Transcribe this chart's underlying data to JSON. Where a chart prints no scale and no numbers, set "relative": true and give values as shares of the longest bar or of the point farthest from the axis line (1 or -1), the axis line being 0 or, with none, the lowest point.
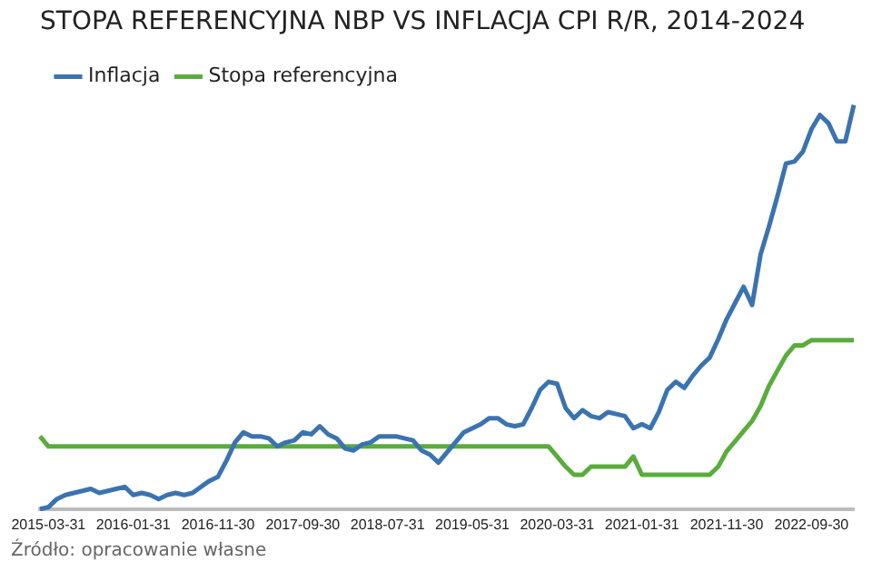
{
  "chart_data": {
    "type": "line",
    "title": "STOPA REFERENCYJNA NBP VS INFLACJA CPI R/R, 2014-2024",
    "categories": [
      null,
      "2015-03-31",
      null,
      null,
      null,
      null,
      null,
      null,
      null,
      null,
      null,
      "2016-01-31",
      null,
      null,
      null,
      null,
      null,
      null,
      null,
      null,
      null,
      "2016-11-30",
      null,
      null,
      null,
      null,
      null,
      null,
      null,
      null,
      null,
      "2017-09-30",
      null,
      null,
      null,
      null,
      null,
      null,
      null,
      null,
      null,
      "2018-07-31",
      null,
      null,
      null,
      null,
      null,
      null,
      null,
      null,
      null,
      "2019-05-31",
      null,
      null,
      null,
      null,
      null,
      null,
      null,
      null,
      null,
      "2020-03-31",
      null,
      null,
      null,
      null,
      null,
      null,
      null,
      null,
      null,
      "2021-01-31",
      null,
      null,
      null,
      null,
      null,
      null,
      null,
      null,
      null,
      "2021-11-30",
      null,
      null,
      null,
      null,
      null,
      null,
      null,
      null,
      null,
      "2022-09-30",
      null,
      null,
      null,
      null,
      null
    ],
    "relative": true,
    "series": [
      {
        "name": "Inflacja",
        "color": "#3b73b0",
        "values": [
          0,
          0.005,
          0.025,
          0.035,
          0.04,
          0.045,
          0.05,
          0.04,
          0.045,
          0.05,
          0.055,
          0.035,
          0.04,
          0.035,
          0.025,
          0.035,
          0.04,
          0.035,
          0.04,
          0.055,
          0.07,
          0.08,
          0.12,
          0.165,
          0.19,
          0.18,
          0.18,
          0.175,
          0.155,
          0.165,
          0.17,
          0.19,
          0.185,
          0.205,
          0.185,
          0.175,
          0.15,
          0.145,
          0.16,
          0.165,
          0.18,
          0.18,
          0.18,
          0.175,
          0.17,
          0.145,
          0.135,
          0.115,
          0.14,
          0.165,
          0.19,
          0.2,
          0.21,
          0.225,
          0.225,
          0.21,
          0.205,
          0.21,
          0.25,
          0.295,
          0.315,
          0.31,
          0.25,
          0.225,
          0.245,
          0.23,
          0.225,
          0.24,
          0.235,
          0.23,
          0.2,
          0.21,
          0.2,
          0.24,
          0.295,
          0.315,
          0.3,
          0.33,
          0.355,
          0.375,
          0.42,
          0.47,
          0.51,
          0.55,
          0.505,
          0.63,
          0.7,
          0.775,
          0.855,
          0.86,
          0.885,
          0.94,
          0.975,
          0.955,
          0.91,
          0.91,
          1
        ]
      },
      {
        "name": "Stopa referencyjna",
        "color": "#5aac3c",
        "values": [
          0.18,
          0.155,
          0.155,
          0.155,
          0.155,
          0.155,
          0.155,
          0.155,
          0.155,
          0.155,
          0.155,
          0.155,
          0.155,
          0.155,
          0.155,
          0.155,
          0.155,
          0.155,
          0.155,
          0.155,
          0.155,
          0.155,
          0.155,
          0.155,
          0.155,
          0.155,
          0.155,
          0.155,
          0.155,
          0.155,
          0.155,
          0.155,
          0.155,
          0.155,
          0.155,
          0.155,
          0.155,
          0.155,
          0.155,
          0.155,
          0.155,
          0.155,
          0.155,
          0.155,
          0.155,
          0.155,
          0.155,
          0.155,
          0.155,
          0.155,
          0.155,
          0.155,
          0.155,
          0.155,
          0.155,
          0.155,
          0.155,
          0.155,
          0.155,
          0.155,
          0.155,
          0.13,
          0.105,
          0.085,
          0.085,
          0.105,
          0.105,
          0.105,
          0.105,
          0.105,
          0.13,
          0.085,
          0.085,
          0.085,
          0.085,
          0.085,
          0.085,
          0.085,
          0.085,
          0.085,
          0.105,
          0.143,
          0.168,
          0.193,
          0.218,
          0.255,
          0.305,
          0.343,
          0.38,
          0.405,
          0.405,
          0.418,
          0.418,
          0.418,
          0.418,
          0.418,
          0.418
        ]
      }
    ],
    "legend": "top left",
    "marker": "none",
    "line_style": "solid",
    "annotations": [
      "Źródło: opracowanie własne"
    ]
  }
}
